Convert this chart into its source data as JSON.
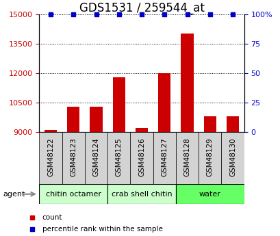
{
  "title": "GDS1531 / 259544_at",
  "samples": [
    "GSM48122",
    "GSM48123",
    "GSM48124",
    "GSM48125",
    "GSM48126",
    "GSM48127",
    "GSM48128",
    "GSM48129",
    "GSM48130"
  ],
  "counts": [
    9100,
    10300,
    10300,
    11800,
    9200,
    12000,
    14000,
    9800,
    9800
  ],
  "percentiles": [
    100,
    100,
    100,
    100,
    100,
    100,
    100,
    100,
    100
  ],
  "ylim_left": [
    9000,
    15000
  ],
  "ylim_right": [
    0,
    100
  ],
  "yticks_left": [
    9000,
    10500,
    12000,
    13500,
    15000
  ],
  "yticks_right": [
    0,
    25,
    50,
    75,
    100
  ],
  "bar_color": "#cc0000",
  "dot_color": "#0000cc",
  "grid_color": "#000000",
  "groups": [
    {
      "label": "chitin octamer",
      "start": 0,
      "end": 3,
      "color": "#ccffcc"
    },
    {
      "label": "crab shell chitin",
      "start": 3,
      "end": 6,
      "color": "#ccffcc"
    },
    {
      "label": "water",
      "start": 6,
      "end": 9,
      "color": "#66ff66"
    }
  ],
  "agent_label": "agent",
  "legend": [
    {
      "label": "count",
      "color": "#cc0000"
    },
    {
      "label": "percentile rank within the sample",
      "color": "#0000cc"
    }
  ],
  "bar_width": 0.55,
  "background_color": "#ffffff",
  "plot_bg_color": "#ffffff",
  "tick_label_color_left": "#cc0000",
  "tick_label_color_right": "#0000cc",
  "title_fontsize": 12,
  "tick_fontsize": 8,
  "label_fontsize": 7.5
}
